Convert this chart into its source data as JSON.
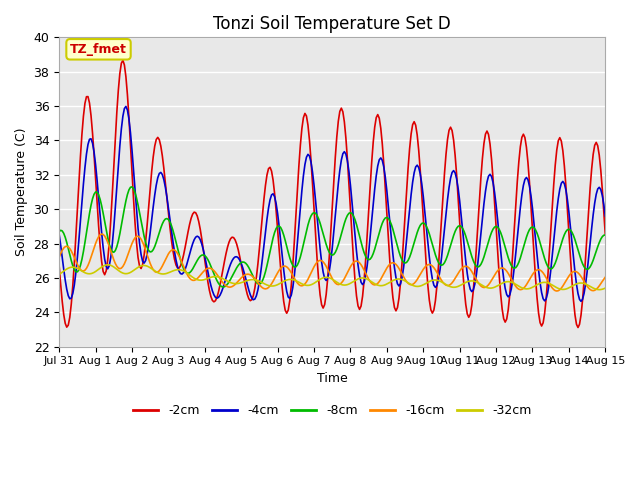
{
  "title": "Tonzi Soil Temperature Set D",
  "xlabel": "Time",
  "ylabel": "Soil Temperature (C)",
  "ylim": [
    22,
    40
  ],
  "yticks": [
    22,
    24,
    26,
    28,
    30,
    32,
    34,
    36,
    38,
    40
  ],
  "annotation_text": "TZ_fmet",
  "annotation_color": "#cc0000",
  "annotation_bg": "#ffffcc",
  "annotation_border": "#cccc00",
  "bg_color": "#e8e8e8",
  "series_colors": [
    "#dd0000",
    "#0000cc",
    "#00bb00",
    "#ff8800",
    "#cccc00"
  ],
  "series_labels": [
    "-2cm",
    "-4cm",
    "-8cm",
    "-16cm",
    "-32cm"
  ],
  "x_tick_labels": [
    "Jul 31",
    "Aug 1",
    "Aug 2",
    "Aug 3",
    "Aug 4",
    "Aug 5",
    "Aug 6",
    "Aug 7",
    "Aug 8",
    "Aug 9",
    "Aug 10",
    "Aug 11",
    "Aug 12",
    "Aug 13",
    "Aug 14",
    "Aug 15"
  ],
  "x_tick_positions": [
    0,
    24,
    48,
    72,
    96,
    120,
    144,
    168,
    192,
    216,
    240,
    264,
    288,
    312,
    336,
    360
  ]
}
